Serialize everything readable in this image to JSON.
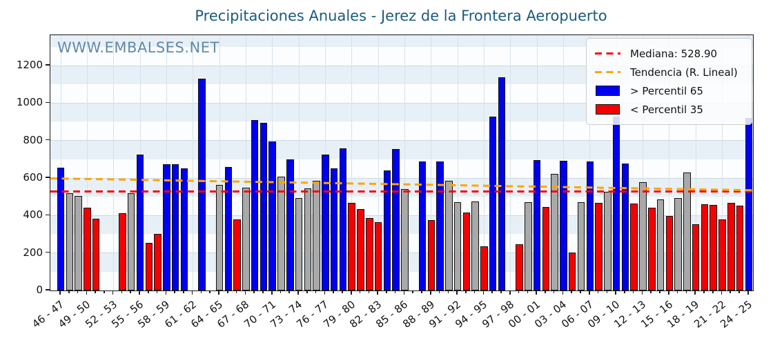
{
  "title": "Precipitaciones Anuales - Jerez de la Frontera Aeropuerto",
  "watermark": "WWW.EMBALSES.NET",
  "legend": {
    "median_label": "Mediana: 528.90",
    "trend_label": "Tendencia (R. Lineal)",
    "p65_label": "> Percentil 65",
    "p35_label": "< Percentil 35"
  },
  "colors": {
    "above_p65": "#0000f0",
    "below_p35": "#f50000",
    "mid": "#a9a9a9",
    "median_line": "#ff0000",
    "trend_line": "#ffa500",
    "title_text": "#1a5a80",
    "band_fill": "#e7f0f6"
  },
  "chart_data": {
    "type": "bar",
    "title": "Precipitaciones Anuales - Jerez de la Frontera Aeropuerto",
    "xlabel": "",
    "ylabel": "",
    "ylim": [
      0,
      1362
    ],
    "y_ticks": [
      0,
      200,
      400,
      600,
      800,
      1000,
      1200
    ],
    "x_tick_step": 3,
    "x_tick_labels": [
      "46 - 47",
      "49 - 50",
      "52 - 53",
      "55 - 56",
      "58 - 59",
      "61 - 62",
      "64 - 65",
      "67 - 68",
      "70 - 71",
      "73 - 74",
      "76 - 77",
      "79 - 80",
      "82 - 83",
      "85 - 86",
      "88 - 89",
      "91 - 92",
      "94 - 95",
      "97 - 98",
      "00 - 01",
      "03 - 04",
      "06 - 07",
      "09 - 10",
      "12 - 13",
      "15 - 16",
      "18 - 19",
      "21 - 22",
      "24 - 25"
    ],
    "grid": true,
    "legend_position": "upper right",
    "median": 528.9,
    "trend": {
      "start": 600,
      "end": 536.5
    },
    "series_note": "band: hi = > Percentil 65 (blue), mid = between percentiles (gray), lo = < Percentil 35 (red), null = no data",
    "bars": [
      {
        "year": "46-47",
        "value": 655,
        "band": "hi"
      },
      {
        "year": "47-48",
        "value": 520,
        "band": "mid"
      },
      {
        "year": "48-49",
        "value": 505,
        "band": "mid"
      },
      {
        "year": "49-50",
        "value": 440,
        "band": "lo"
      },
      {
        "year": "50-51",
        "value": 381,
        "band": "lo"
      },
      {
        "year": "51-52",
        "value": null,
        "band": null
      },
      {
        "year": "52-53",
        "value": null,
        "band": null
      },
      {
        "year": "53-54",
        "value": 412,
        "band": "lo"
      },
      {
        "year": "54-55",
        "value": 519,
        "band": "mid"
      },
      {
        "year": "55-56",
        "value": 725,
        "band": "hi"
      },
      {
        "year": "56-57",
        "value": 253,
        "band": "lo"
      },
      {
        "year": "57-58",
        "value": 302,
        "band": "lo"
      },
      {
        "year": "58-59",
        "value": 674,
        "band": "hi"
      },
      {
        "year": "59-60",
        "value": 672,
        "band": "hi"
      },
      {
        "year": "60-61",
        "value": 650,
        "band": "hi"
      },
      {
        "year": "61-62",
        "value": null,
        "band": null
      },
      {
        "year": "62-63",
        "value": 1130,
        "band": "hi"
      },
      {
        "year": "63-64",
        "value": null,
        "band": null
      },
      {
        "year": "64-65",
        "value": 565,
        "band": "mid"
      },
      {
        "year": "65-66",
        "value": 660,
        "band": "hi"
      },
      {
        "year": "66-67",
        "value": 378,
        "band": "lo"
      },
      {
        "year": "67-68",
        "value": 550,
        "band": "mid"
      },
      {
        "year": "68-69",
        "value": 910,
        "band": "hi"
      },
      {
        "year": "69-70",
        "value": 893,
        "band": "hi"
      },
      {
        "year": "70-71",
        "value": 795,
        "band": "hi"
      },
      {
        "year": "71-72",
        "value": 606,
        "band": "mid"
      },
      {
        "year": "72-73",
        "value": 700,
        "band": "hi"
      },
      {
        "year": "73-74",
        "value": 494,
        "band": "mid"
      },
      {
        "year": "74-75",
        "value": 546,
        "band": "mid"
      },
      {
        "year": "75-76",
        "value": 585,
        "band": "mid"
      },
      {
        "year": "76-77",
        "value": 725,
        "band": "hi"
      },
      {
        "year": "77-78",
        "value": 650,
        "band": "hi"
      },
      {
        "year": "78-79",
        "value": 760,
        "band": "hi"
      },
      {
        "year": "79-80",
        "value": 467,
        "band": "lo"
      },
      {
        "year": "80-81",
        "value": 435,
        "band": "lo"
      },
      {
        "year": "81-82",
        "value": 386,
        "band": "lo"
      },
      {
        "year": "82-83",
        "value": 365,
        "band": "lo"
      },
      {
        "year": "83-84",
        "value": 639,
        "band": "hi"
      },
      {
        "year": "84-85",
        "value": 755,
        "band": "hi"
      },
      {
        "year": "85-86",
        "value": 540,
        "band": "mid"
      },
      {
        "year": "86-87",
        "value": null,
        "band": null
      },
      {
        "year": "87-88",
        "value": 688,
        "band": "hi"
      },
      {
        "year": "88-89",
        "value": 374,
        "band": "lo"
      },
      {
        "year": "89-90",
        "value": 688,
        "band": "hi"
      },
      {
        "year": "90-91",
        "value": 585,
        "band": "mid"
      },
      {
        "year": "91-92",
        "value": 473,
        "band": "mid"
      },
      {
        "year": "92-93",
        "value": 415,
        "band": "lo"
      },
      {
        "year": "93-94",
        "value": 474,
        "band": "mid"
      },
      {
        "year": "94-95",
        "value": 237,
        "band": "lo"
      },
      {
        "year": "95-96",
        "value": 927,
        "band": "hi"
      },
      {
        "year": "96-97",
        "value": 1137,
        "band": "hi"
      },
      {
        "year": "97-98",
        "value": null,
        "band": null
      },
      {
        "year": "98-99",
        "value": 248,
        "band": "lo"
      },
      {
        "year": "99-00",
        "value": 472,
        "band": "mid"
      },
      {
        "year": "00-01",
        "value": 696,
        "band": "hi"
      },
      {
        "year": "01-02",
        "value": 445,
        "band": "lo"
      },
      {
        "year": "02-03",
        "value": 622,
        "band": "mid"
      },
      {
        "year": "03-04",
        "value": 692,
        "band": "hi"
      },
      {
        "year": "04-05",
        "value": 203,
        "band": "lo"
      },
      {
        "year": "05-06",
        "value": 473,
        "band": "mid"
      },
      {
        "year": "06-07",
        "value": 690,
        "band": "hi"
      },
      {
        "year": "07-08",
        "value": 467,
        "band": "lo"
      },
      {
        "year": "08-09",
        "value": 527,
        "band": "mid"
      },
      {
        "year": "09-10",
        "value": 928,
        "band": "hi"
      },
      {
        "year": "10-11",
        "value": 676,
        "band": "hi"
      },
      {
        "year": "11-12",
        "value": 464,
        "band": "lo"
      },
      {
        "year": "12-13",
        "value": 577,
        "band": "mid"
      },
      {
        "year": "13-14",
        "value": 442,
        "band": "lo"
      },
      {
        "year": "14-15",
        "value": 486,
        "band": "mid"
      },
      {
        "year": "15-16",
        "value": 396,
        "band": "lo"
      },
      {
        "year": "16-17",
        "value": 492,
        "band": "mid"
      },
      {
        "year": "17-18",
        "value": 630,
        "band": "mid"
      },
      {
        "year": "18-19",
        "value": 353,
        "band": "lo"
      },
      {
        "year": "19-20",
        "value": 461,
        "band": "lo"
      },
      {
        "year": "20-21",
        "value": 458,
        "band": "lo"
      },
      {
        "year": "21-22",
        "value": 379,
        "band": "lo"
      },
      {
        "year": "22-23",
        "value": 466,
        "band": "lo"
      },
      {
        "year": "23-24",
        "value": 451,
        "band": "lo"
      },
      {
        "year": "24-25",
        "value": 920,
        "band": "hi"
      }
    ]
  }
}
